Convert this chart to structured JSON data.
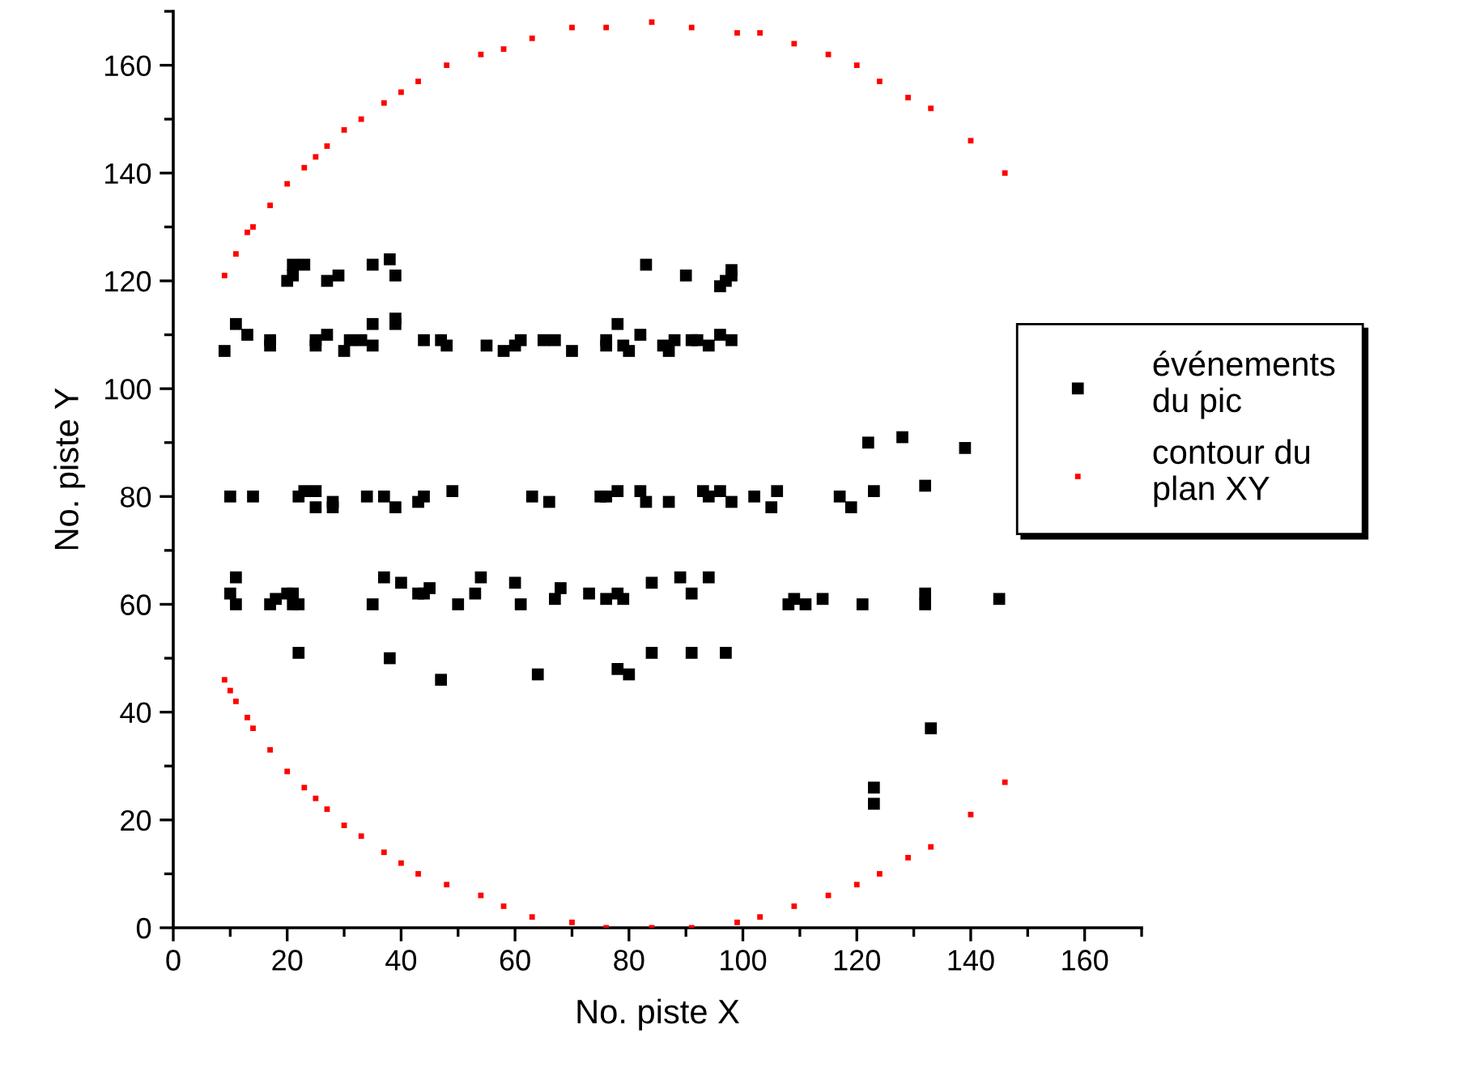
{
  "chart_data": {
    "type": "scatter",
    "xlabel": "No. piste X",
    "ylabel": "No. piste Y",
    "xlim": [
      0,
      170
    ],
    "ylim": [
      0,
      170
    ],
    "xticks": [
      0,
      {
        "value": 10,
        "label": null
      },
      20,
      {
        "value": 30,
        "label": null
      },
      40,
      {
        "value": 50,
        "label": null
      },
      60,
      {
        "value": 70,
        "label": null
      },
      80,
      {
        "value": 90,
        "label": null
      },
      100,
      {
        "value": 110,
        "label": null
      },
      120,
      {
        "value": 130,
        "label": null
      },
      140,
      {
        "value": 150,
        "label": null
      },
      160,
      {
        "value": 170,
        "label": null
      }
    ],
    "yticks": [
      0,
      {
        "value": 10,
        "label": null
      },
      20,
      {
        "value": 30,
        "label": null
      },
      40,
      {
        "value": 50,
        "label": null
      },
      60,
      {
        "value": 70,
        "label": null
      },
      80,
      {
        "value": 90,
        "label": null
      },
      100,
      {
        "value": 110,
        "label": null
      },
      120,
      {
        "value": 130,
        "label": null
      },
      140,
      {
        "value": 150,
        "label": null
      },
      160,
      {
        "value": 170,
        "label": null
      }
    ],
    "grid": false,
    "legend": "right",
    "marker": "square",
    "series": [
      {
        "name": "événements\ndu pic",
        "color": "#000000",
        "x": [
          20,
          21,
          21,
          23,
          27,
          29,
          35,
          38,
          39,
          9,
          11,
          13,
          17,
          17,
          25,
          25,
          27,
          30,
          31,
          33,
          35,
          35,
          39,
          39,
          44,
          47,
          48,
          55,
          58,
          60,
          61,
          65,
          67,
          70,
          10,
          14,
          22,
          23,
          25,
          25,
          28,
          28,
          34,
          37,
          39,
          43,
          44,
          49,
          63,
          66,
          10,
          11,
          11,
          17,
          18,
          20,
          21,
          21,
          22,
          35,
          37,
          40,
          43,
          44,
          45,
          50,
          53,
          54,
          60,
          61,
          67,
          68,
          73,
          22,
          38,
          47,
          64,
          83,
          90,
          96,
          97,
          98,
          98,
          78,
          76,
          76,
          79,
          80,
          82,
          86,
          87,
          88,
          91,
          92,
          94,
          96,
          98,
          75,
          76,
          78,
          82,
          83,
          87,
          93,
          94,
          96,
          98,
          102,
          106,
          105,
          117,
          119,
          123,
          132,
          122,
          128,
          139,
          76,
          78,
          79,
          84,
          89,
          91,
          94,
          108,
          109,
          111,
          114,
          121,
          132,
          132,
          145,
          84,
          91,
          97,
          78,
          80,
          123,
          123,
          133
        ],
        "values": [
          120,
          121,
          123,
          123,
          120,
          121,
          123,
          124,
          121,
          107,
          112,
          110,
          109,
          108,
          109,
          108,
          110,
          107,
          109,
          109,
          112,
          108,
          113,
          112,
          109,
          109,
          108,
          108,
          107,
          108,
          109,
          109,
          109,
          107,
          80,
          80,
          80,
          81,
          81,
          78,
          79,
          78,
          80,
          80,
          78,
          79,
          80,
          81,
          80,
          79,
          62,
          65,
          60,
          60,
          61,
          62,
          62,
          60,
          60,
          60,
          65,
          64,
          62,
          62,
          63,
          60,
          62,
          65,
          64,
          60,
          61,
          63,
          62,
          51,
          50,
          46,
          47,
          123,
          121,
          119,
          120,
          121,
          122,
          112,
          109,
          108,
          108,
          107,
          110,
          108,
          107,
          109,
          109,
          109,
          108,
          110,
          109,
          80,
          80,
          81,
          81,
          79,
          79,
          81,
          80,
          81,
          79,
          80,
          81,
          78,
          80,
          78,
          81,
          82,
          90,
          91,
          89,
          61,
          62,
          61,
          64,
          65,
          62,
          65,
          60,
          61,
          60,
          61,
          60,
          62,
          60,
          61,
          51,
          51,
          51,
          48,
          47,
          26,
          23,
          37
        ]
      },
      {
        "name": "contour du\nplan XY",
        "color": "#ff0000",
        "x": [
          9,
          11,
          13,
          14,
          17,
          20,
          23,
          25,
          27,
          30,
          33,
          37,
          40,
          43,
          48,
          54,
          58,
          63,
          70,
          76,
          84,
          91,
          99,
          103,
          109,
          115,
          120,
          124,
          129,
          133,
          140,
          146,
          9,
          10,
          11,
          13,
          14,
          17,
          20,
          23,
          25,
          27,
          30,
          33,
          37,
          40,
          43,
          48,
          54,
          58,
          63,
          70,
          76,
          84,
          91,
          99,
          103,
          109,
          115,
          120,
          124,
          129,
          133,
          140,
          146
        ],
        "values": [
          121,
          125,
          129,
          130,
          134,
          138,
          141,
          143,
          145,
          148,
          150,
          153,
          155,
          157,
          160,
          162,
          163,
          165,
          167,
          167,
          168,
          167,
          166,
          166,
          164,
          162,
          160,
          157,
          154,
          152,
          146,
          140,
          46,
          44,
          42,
          39,
          37,
          33,
          29,
          26,
          24,
          22,
          19,
          17,
          14,
          12,
          10,
          8,
          6,
          4,
          2,
          1,
          0,
          0,
          0,
          1,
          2,
          4,
          6,
          8,
          10,
          13,
          15,
          21,
          27
        ]
      }
    ]
  }
}
